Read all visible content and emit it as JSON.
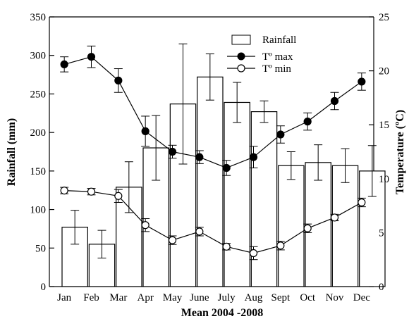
{
  "chart_data": {
    "type": "bar",
    "xlabel": "Mean 2004 -2008",
    "categories": [
      "Jan",
      "Feb",
      "Mar",
      "Apr",
      "May",
      "June",
      "July",
      "Aug",
      "Sept",
      "Oct",
      "Nov",
      "Dec"
    ],
    "y_left": {
      "label": "Rainfall (mm)",
      "ylim": [
        0,
        350
      ],
      "ticks": [
        "0",
        "50",
        "100",
        "150",
        "200",
        "250",
        "300",
        "350"
      ]
    },
    "y_right": {
      "label": "Temperature (ºC)",
      "ylim": [
        0,
        25
      ],
      "ticks": [
        "0",
        "5",
        "10",
        "15",
        "20",
        "25"
      ]
    },
    "series": [
      {
        "name": "Rainfall",
        "type": "bar",
        "axis": "left",
        "values": [
          77,
          55,
          129,
          180,
          237,
          272,
          239,
          227,
          157,
          161,
          157,
          150
        ],
        "error": [
          22,
          18,
          33,
          42,
          78,
          30,
          26,
          14,
          18,
          23,
          22,
          33
        ]
      },
      {
        "name": "Tº max",
        "type": "line",
        "axis": "right",
        "marker": "filled-circle",
        "values": [
          20.6,
          21.3,
          19.1,
          14.4,
          12.5,
          12.0,
          11.0,
          12.0,
          14.1,
          15.3,
          17.2,
          19.0
        ],
        "error": [
          0.7,
          1.0,
          1.1,
          1.4,
          0.6,
          0.6,
          0.7,
          1.0,
          0.8,
          0.8,
          0.8,
          0.8
        ]
      },
      {
        "name": "Tº min",
        "type": "line",
        "axis": "right",
        "marker": "open-circle",
        "values": [
          8.9,
          8.8,
          8.4,
          5.7,
          4.3,
          5.1,
          3.7,
          3.1,
          3.8,
          5.4,
          6.4,
          7.8
        ],
        "error": [
          0.3,
          0.3,
          0.6,
          0.6,
          0.4,
          0.4,
          0.3,
          0.6,
          0.4,
          0.4,
          0.3,
          0.4
        ]
      }
    ],
    "legend_position": "top-right",
    "grid": false
  }
}
